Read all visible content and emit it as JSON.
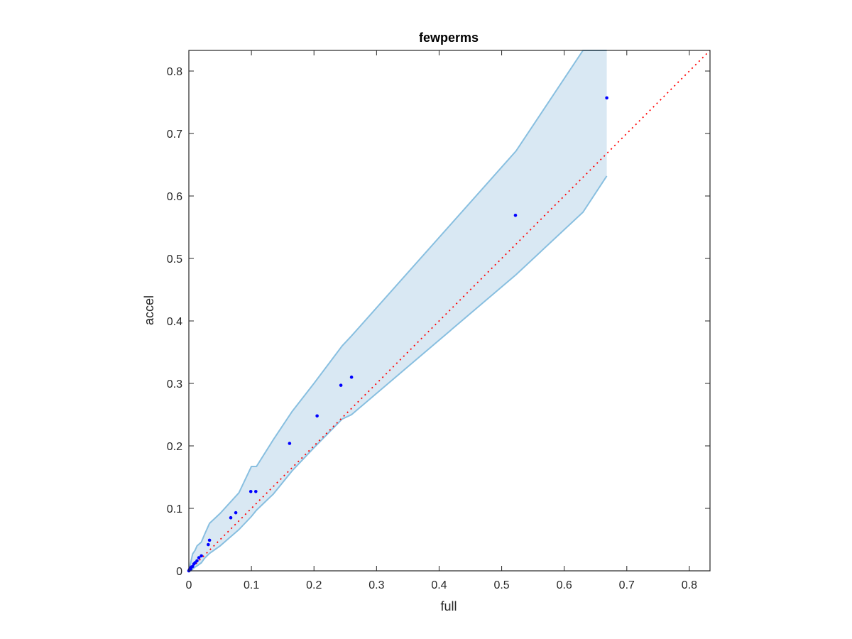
{
  "chart_data": {
    "type": "scatter",
    "title": "fewperms",
    "xlabel": "full",
    "ylabel": "accel",
    "xlim": [
      0,
      0.833
    ],
    "ylim": [
      0,
      0.833
    ],
    "xticks": [
      0,
      0.1,
      0.2,
      0.3,
      0.4,
      0.5,
      0.6,
      0.7,
      0.8
    ],
    "yticks": [
      0,
      0.1,
      0.2,
      0.3,
      0.4,
      0.5,
      0.6,
      0.7,
      0.8
    ],
    "xtick_labels": [
      "0",
      "0.1",
      "0.2",
      "0.3",
      "0.4",
      "0.5",
      "0.6",
      "0.7",
      "0.8"
    ],
    "ytick_labels": [
      "0",
      "0.1",
      "0.2",
      "0.3",
      "0.4",
      "0.5",
      "0.6",
      "0.7",
      "0.8"
    ],
    "grid": false,
    "colors": {
      "points": "#0000ff",
      "band_fill": "#d9e8f3",
      "band_edge": "#88bfe0",
      "reference": "#ff0000",
      "axes": "#262626"
    },
    "series": [
      {
        "kind": "points",
        "x": [
          0.0,
          0.001,
          0.002,
          0.003,
          0.004,
          0.006,
          0.008,
          0.01,
          0.013,
          0.016,
          0.02,
          0.031,
          0.033,
          0.067,
          0.075,
          0.099,
          0.107,
          0.161,
          0.205,
          0.243,
          0.26,
          0.522,
          0.668
        ],
        "y": [
          0.0,
          0.002,
          0.004,
          0.003,
          0.006,
          0.007,
          0.011,
          0.013,
          0.016,
          0.021,
          0.024,
          0.042,
          0.049,
          0.085,
          0.093,
          0.127,
          0.127,
          0.204,
          0.248,
          0.297,
          0.31,
          0.569,
          0.757
        ]
      },
      {
        "kind": "band",
        "x": [
          0.0,
          0.003,
          0.006,
          0.01,
          0.013,
          0.02,
          0.025,
          0.033,
          0.05,
          0.08,
          0.1,
          0.108,
          0.135,
          0.165,
          0.2,
          0.245,
          0.26,
          0.523,
          0.63,
          0.668
        ],
        "upper": [
          0.0,
          0.013,
          0.027,
          0.033,
          0.04,
          0.046,
          0.058,
          0.076,
          0.092,
          0.125,
          0.167,
          0.167,
          0.21,
          0.255,
          0.3,
          0.36,
          0.376,
          0.672,
          0.833,
          0.833
        ],
        "lower": [
          0.0,
          0.0,
          0.003,
          0.006,
          0.008,
          0.013,
          0.02,
          0.028,
          0.04,
          0.066,
          0.087,
          0.097,
          0.123,
          0.16,
          0.197,
          0.243,
          0.25,
          0.474,
          0.574,
          0.632
        ]
      },
      {
        "kind": "reference",
        "x": [
          0,
          0.833
        ],
        "y": [
          0,
          0.833
        ]
      }
    ]
  }
}
